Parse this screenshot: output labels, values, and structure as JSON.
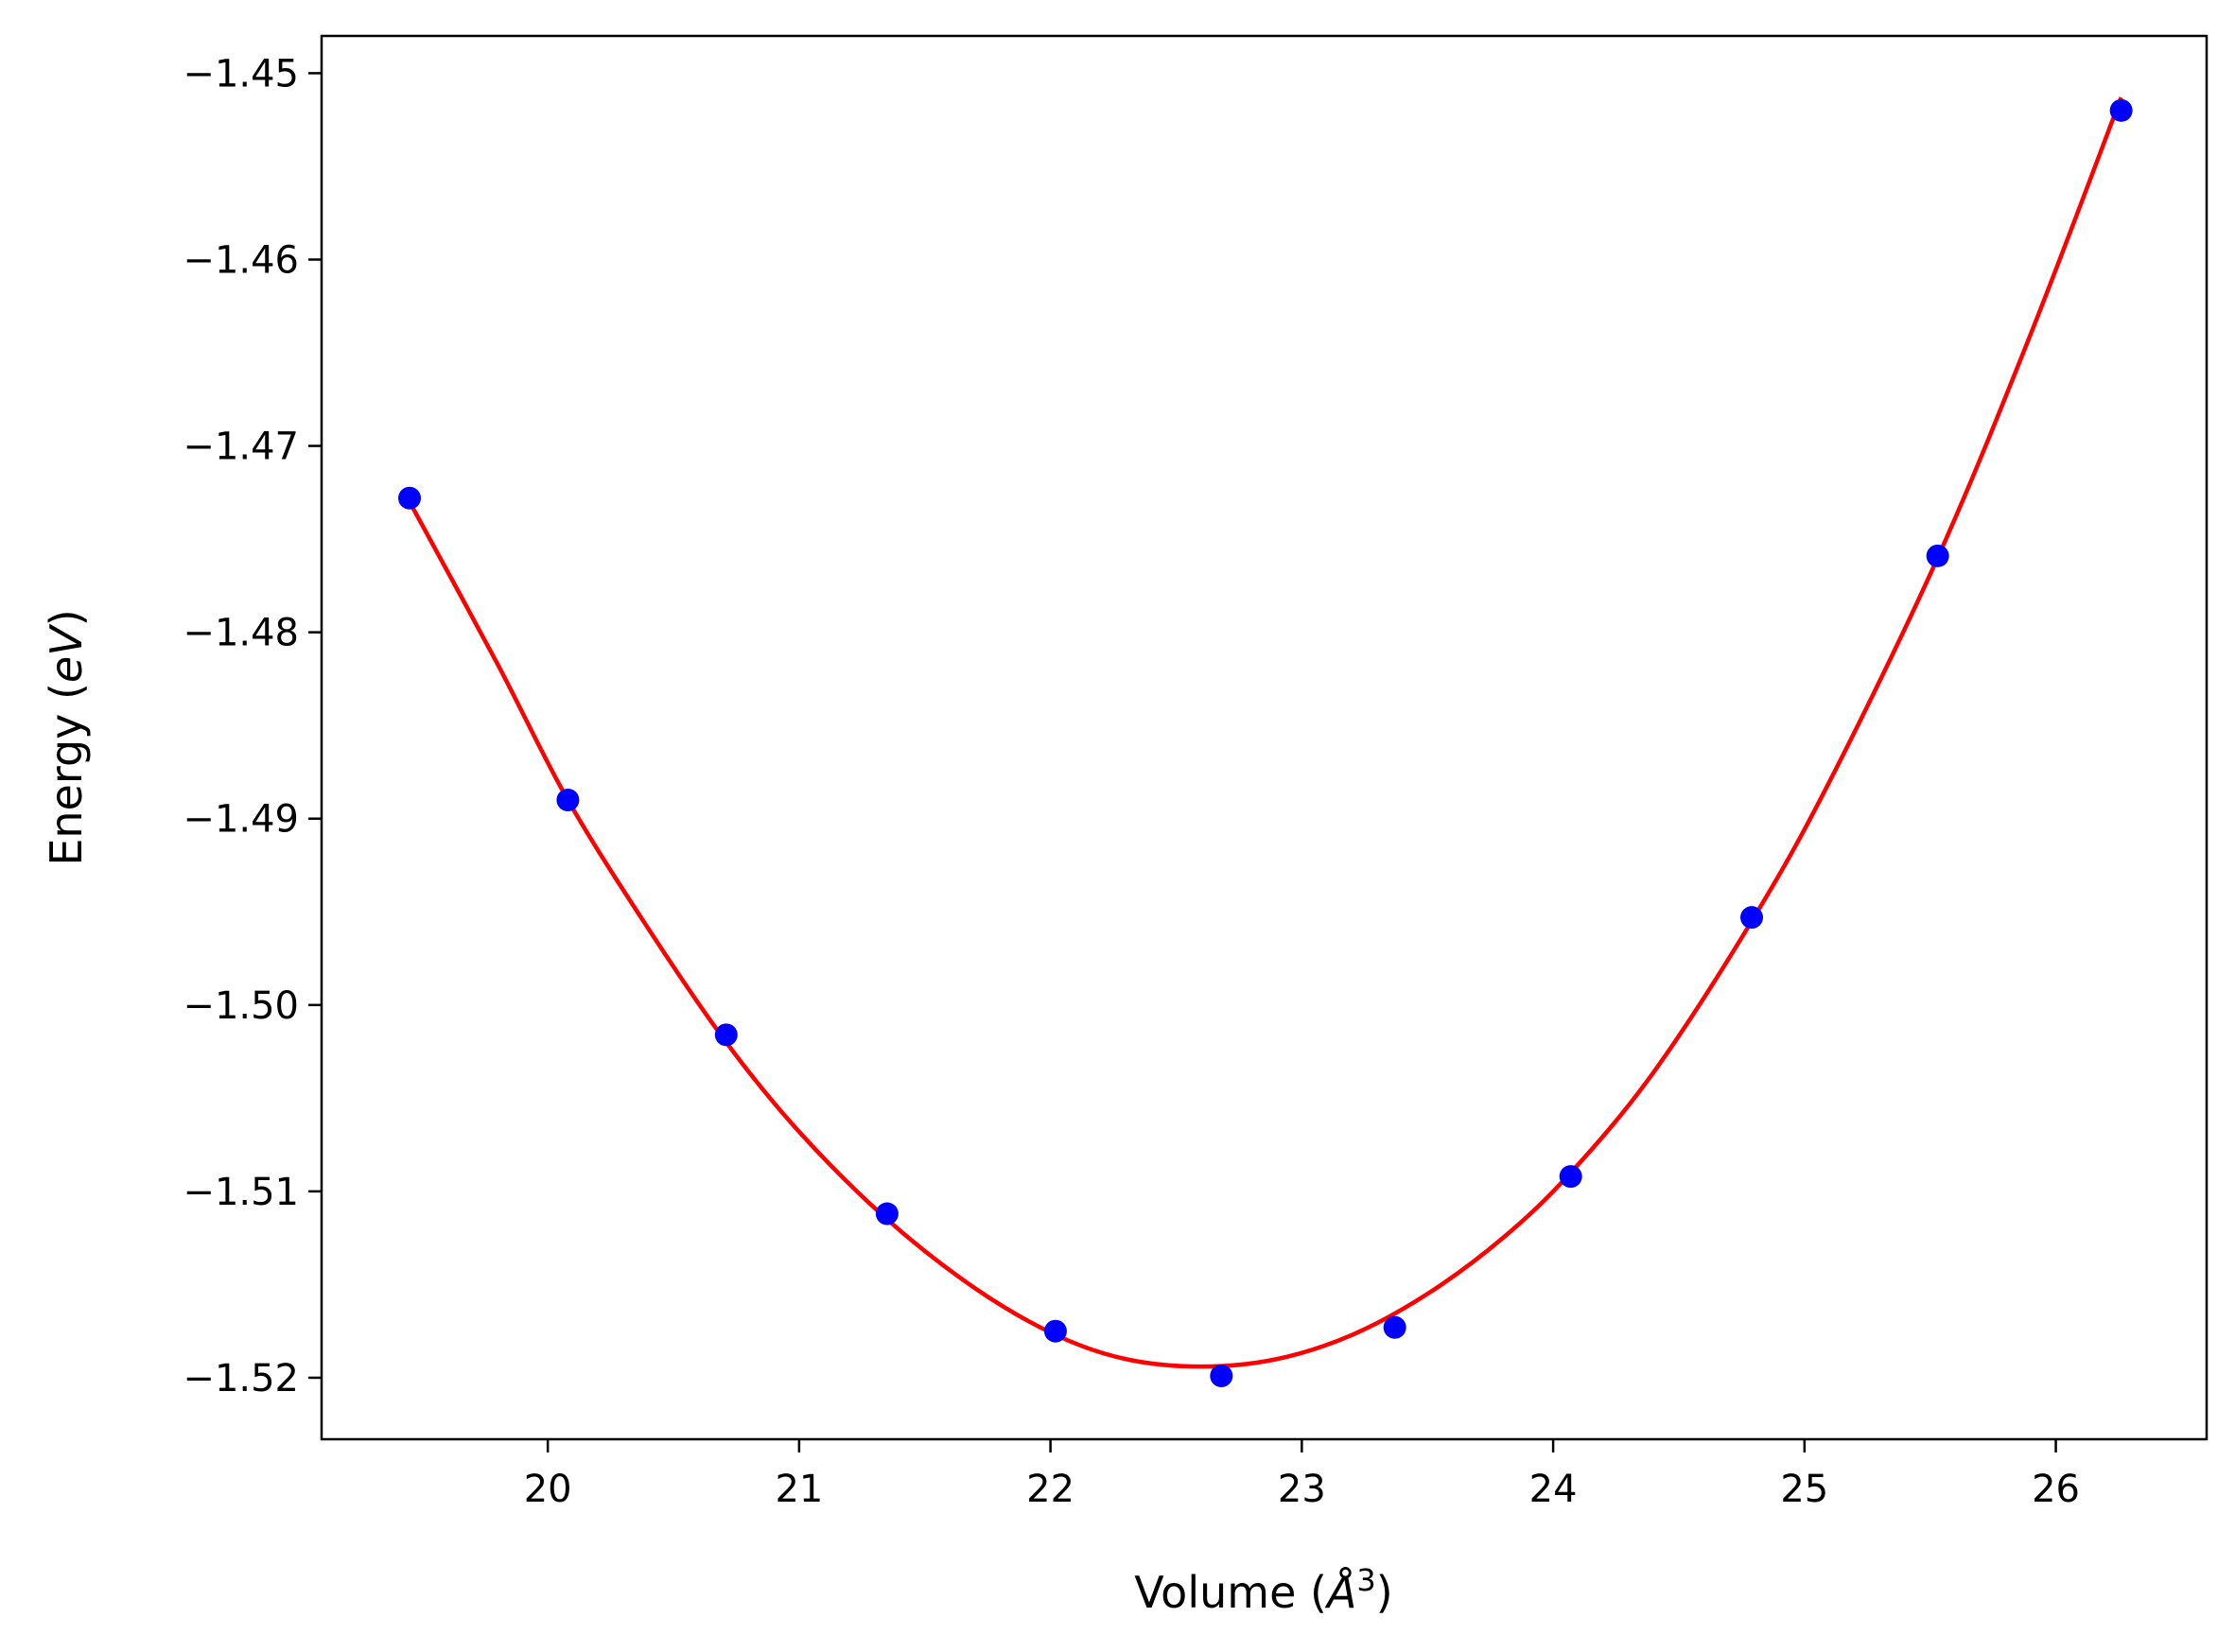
{
  "chart_data": {
    "type": "scatter",
    "xlabel": "Volume (Å³)",
    "xlabel_parts": {
      "prefix": "Volume (",
      "symbol": "Å",
      "exponent": "3",
      "suffix": ")"
    },
    "ylabel": "Energy (eV)",
    "ylabel_parts": {
      "prefix": "Energy (",
      "unit": "eV",
      "suffix": ")"
    },
    "xlim": [
      19.1,
      26.6
    ],
    "ylim": [
      -1.5233,
      -1.448
    ],
    "x_ticks": [
      20,
      21,
      22,
      23,
      24,
      25,
      26
    ],
    "x_tick_labels": [
      "20",
      "21",
      "22",
      "23",
      "24",
      "25",
      "26"
    ],
    "y_ticks": [
      -1.45,
      -1.46,
      -1.47,
      -1.48,
      -1.49,
      -1.5,
      -1.51,
      -1.52
    ],
    "y_tick_labels": [
      "−1.45",
      "−1.46",
      "−1.47",
      "−1.48",
      "−1.49",
      "−1.50",
      "−1.51",
      "−1.52"
    ],
    "grid": false,
    "series": [
      {
        "kind": "scatter",
        "color": "#0000ff",
        "x": [
          19.45,
          20.08,
          20.71,
          21.35,
          22.02,
          22.68,
          23.37,
          24.07,
          24.79,
          25.53,
          26.26
        ],
        "y": [
          -1.4728,
          -1.489,
          -1.5016,
          -1.5112,
          -1.5175,
          -1.5199,
          -1.5173,
          -1.5092,
          -1.4953,
          -1.4759,
          -1.452
        ]
      },
      {
        "kind": "line",
        "color": "#ff0000",
        "x": [
          19.45,
          19.8,
          20.08,
          20.4,
          20.71,
          21.0,
          21.35,
          21.7,
          22.02,
          22.3,
          22.6,
          22.9,
          23.2,
          23.5,
          23.8,
          24.07,
          24.4,
          24.79,
          25.1,
          25.53,
          25.9,
          26.26
        ],
        "y": [
          -1.473,
          -1.4817,
          -1.489,
          -1.4959,
          -1.502,
          -1.5068,
          -1.5115,
          -1.5152,
          -1.5177,
          -1.519,
          -1.5194,
          -1.519,
          -1.5177,
          -1.5155,
          -1.5125,
          -1.509,
          -1.5036,
          -1.4955,
          -1.488,
          -1.476,
          -1.464,
          -1.4513
        ]
      }
    ]
  }
}
